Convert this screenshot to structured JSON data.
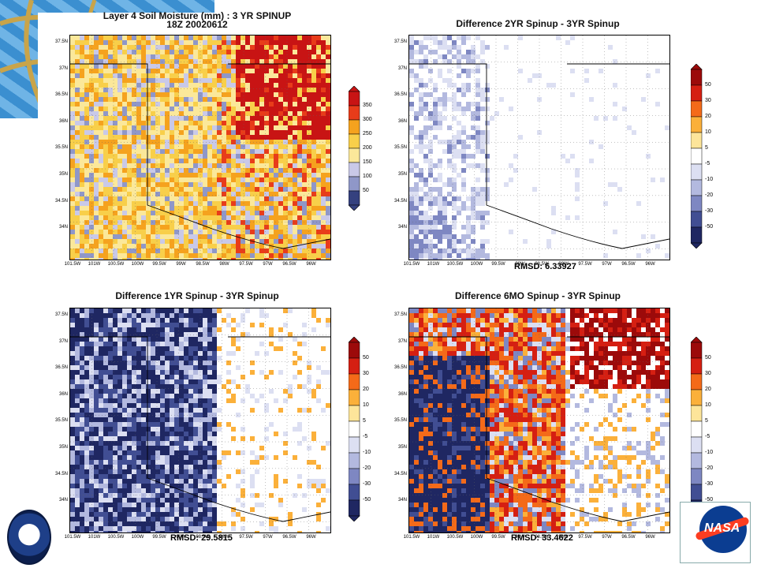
{
  "panels": [
    {
      "id": "p1",
      "title_line1": "Layer 4 Soil Moisture (mm) : 3 YR SPINUP",
      "title_line2": "18Z 20020612",
      "rmsd": "",
      "colorbar": [
        "350",
        "300",
        "250",
        "200",
        "150",
        "100",
        "50"
      ],
      "kind": "abs"
    },
    {
      "id": "p2",
      "title_line1": "Difference 2YR Spinup - 3YR Spinup",
      "title_line2": "",
      "rmsd": "RMSD: 6.33927",
      "colorbar": [
        "50",
        "30",
        "20",
        "10",
        "5",
        "-5",
        "-10",
        "-20",
        "-30",
        "-50"
      ],
      "kind": "d2"
    },
    {
      "id": "p3",
      "title_line1": "Difference 1YR Spinup - 3YR Spinup",
      "title_line2": "",
      "rmsd": "RMSD: 29.5815",
      "colorbar": [
        "50",
        "30",
        "20",
        "10",
        "5",
        "-5",
        "-10",
        "-20",
        "-30",
        "-50"
      ],
      "kind": "d1"
    },
    {
      "id": "p4",
      "title_line1": "Difference 6MO Spinup - 3YR Spinup",
      "title_line2": "",
      "rmsd": "RMSD: 33.4622",
      "colorbar": [
        "50",
        "30",
        "20",
        "10",
        "5",
        "-5",
        "-10",
        "-20",
        "-30",
        "-50"
      ],
      "kind": "d6"
    }
  ],
  "lat_labels": [
    "37.5N",
    "37N",
    "36.5N",
    "36N",
    "35.5N",
    "35N",
    "34.5N",
    "34N"
  ],
  "lon_labels": [
    "101.5W",
    "101W",
    "100.5W",
    "100W",
    "99.5W",
    "99W",
    "98.5W",
    "98W",
    "97.5W",
    "97W",
    "96.5W",
    "96W"
  ],
  "colors": {
    "abs": [
      "#c81414",
      "#e83c1a",
      "#f5a21e",
      "#f8cf4a",
      "#fbe89a",
      "#c9c9e8",
      "#8f97c8",
      "#35417f"
    ],
    "diff": [
      "#9c0a0a",
      "#d51f12",
      "#f46a19",
      "#fbb03a",
      "#fde59a",
      "#ffffff",
      "#dcdff2",
      "#b3b9df",
      "#7e87c2",
      "#414e93",
      "#1f2762"
    ]
  },
  "logos": [
    "left-mission-seal",
    "nasa-meatball"
  ]
}
